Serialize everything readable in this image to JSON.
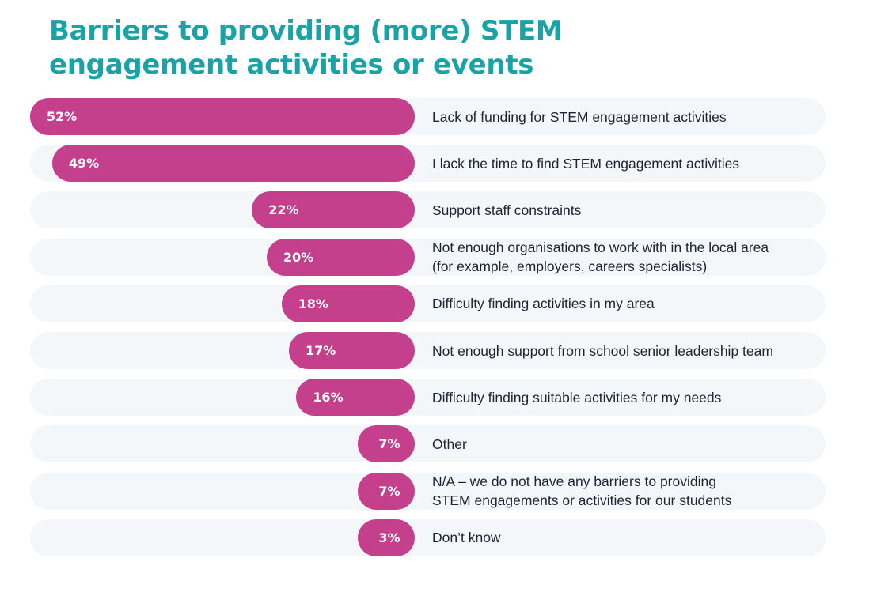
{
  "chart_data": {
    "type": "bar",
    "orientation": "horizontal",
    "title": "Barriers to providing (more) STEM engagement activities or events",
    "unit": "%",
    "categories": [
      "Lack of funding for STEM engagement activities",
      "I lack the time to find STEM engagement activities",
      "Support staff constraints",
      "Not enough organisations to work with in the local area\n(for example, employers, careers specialists)",
      "Difficulty finding activities in my area",
      "Not enough support from school senior leadership team",
      "Difficulty finding suitable activities for my needs",
      "Other",
      "N/A – we do not have any barriers to providing\nSTEM engagements or activities for our students",
      "Don’t know"
    ],
    "values": [
      52,
      49,
      22,
      20,
      18,
      17,
      16,
      7,
      7,
      3
    ],
    "value_labels": [
      "52%",
      "49%",
      "22%",
      "20%",
      "18%",
      "17%",
      "16%",
      "7%",
      "7%",
      "3%"
    ],
    "colors": {
      "bar": "#c4408d",
      "track": "#f4f7f9",
      "title": "#19a3a6"
    }
  }
}
